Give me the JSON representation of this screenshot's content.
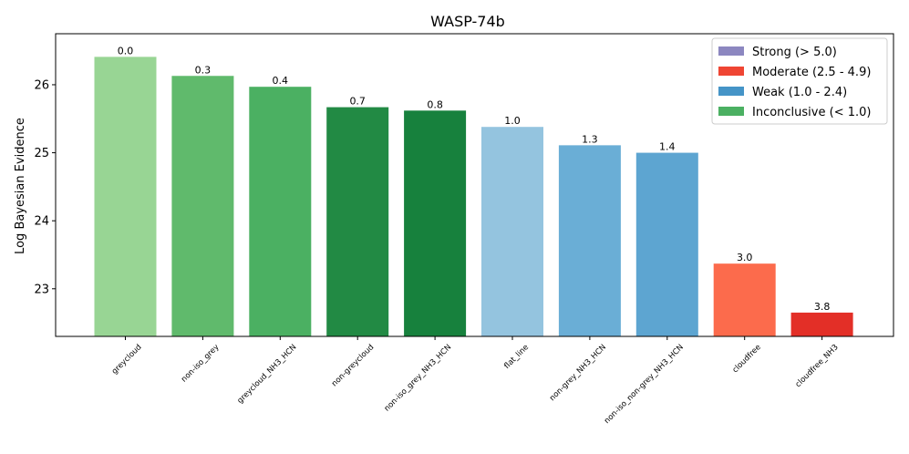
{
  "chart_data": {
    "type": "bar",
    "title": "WASP-74b",
    "xlabel": "",
    "ylabel": "Log Bayesian Evidence",
    "ylim": [
      22.3,
      26.75
    ],
    "yticks": [
      23,
      24,
      25,
      26
    ],
    "grid": false,
    "legend_position": "top-right",
    "categories": [
      "greycloud",
      "non-iso_grey",
      "greycloud_NH3_HCN",
      "non-greycloud",
      "non-iso_grey_NH3_HCN",
      "flat_line",
      "non-grey_NH3_HCN",
      "non-iso_non-grey_NH3_HCN",
      "cloudfree",
      "cloudfree_NH3"
    ],
    "values": [
      26.41,
      26.13,
      25.97,
      25.67,
      25.62,
      25.38,
      25.11,
      25.0,
      23.37,
      22.65
    ],
    "labels": [
      "0.0",
      "0.3",
      "0.4",
      "0.7",
      "0.8",
      "1.0",
      "1.3",
      "1.4",
      "3.0",
      "3.8"
    ],
    "colors": [
      "#98d594",
      "#60ba6c",
      "#4bb062",
      "#228a44",
      "#17813d",
      "#94c4df",
      "#6aaed6",
      "#5da5d1",
      "#fc6b4c",
      "#e32f27"
    ],
    "legend": [
      {
        "label": "Strong (> 5.0)",
        "color": "#8c87c0"
      },
      {
        "label": "Moderate (2.5 - 4.9)",
        "color": "#ef4533"
      },
      {
        "label": "Weak (1.0 - 2.4)",
        "color": "#4594c7"
      },
      {
        "label": "Inconclusive (< 1.0)",
        "color": "#4bb062"
      }
    ]
  }
}
